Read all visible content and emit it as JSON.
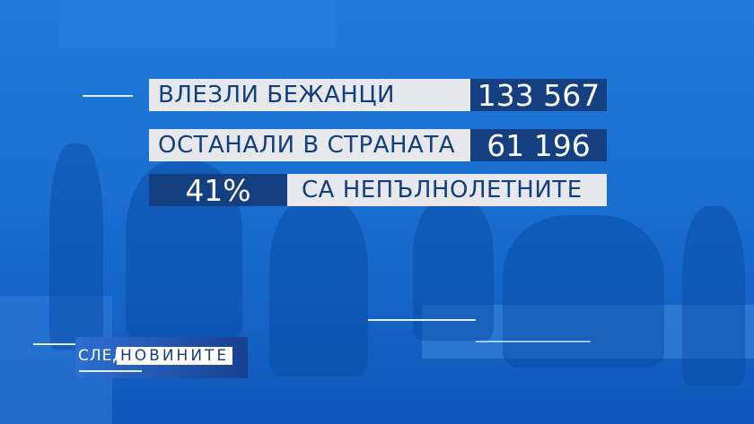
{
  "stats": [
    {
      "label": "ВЛЕЗЛИ БЕЖАНЦИ",
      "value": "133 567"
    },
    {
      "label": "ОСТАНАЛИ В СТРАНАТА",
      "value": "61 196"
    },
    {
      "value": "41%",
      "label": "СА НЕПЪЛНОЛЕТНИТЕ"
    }
  ],
  "logo": {
    "part1": "СЛЕД",
    "part2": "НОВИНИТЕ"
  },
  "colors": {
    "background": "#1a6fd0",
    "dark_bar": "#143f80",
    "light_bar": "#e6e8ec"
  }
}
